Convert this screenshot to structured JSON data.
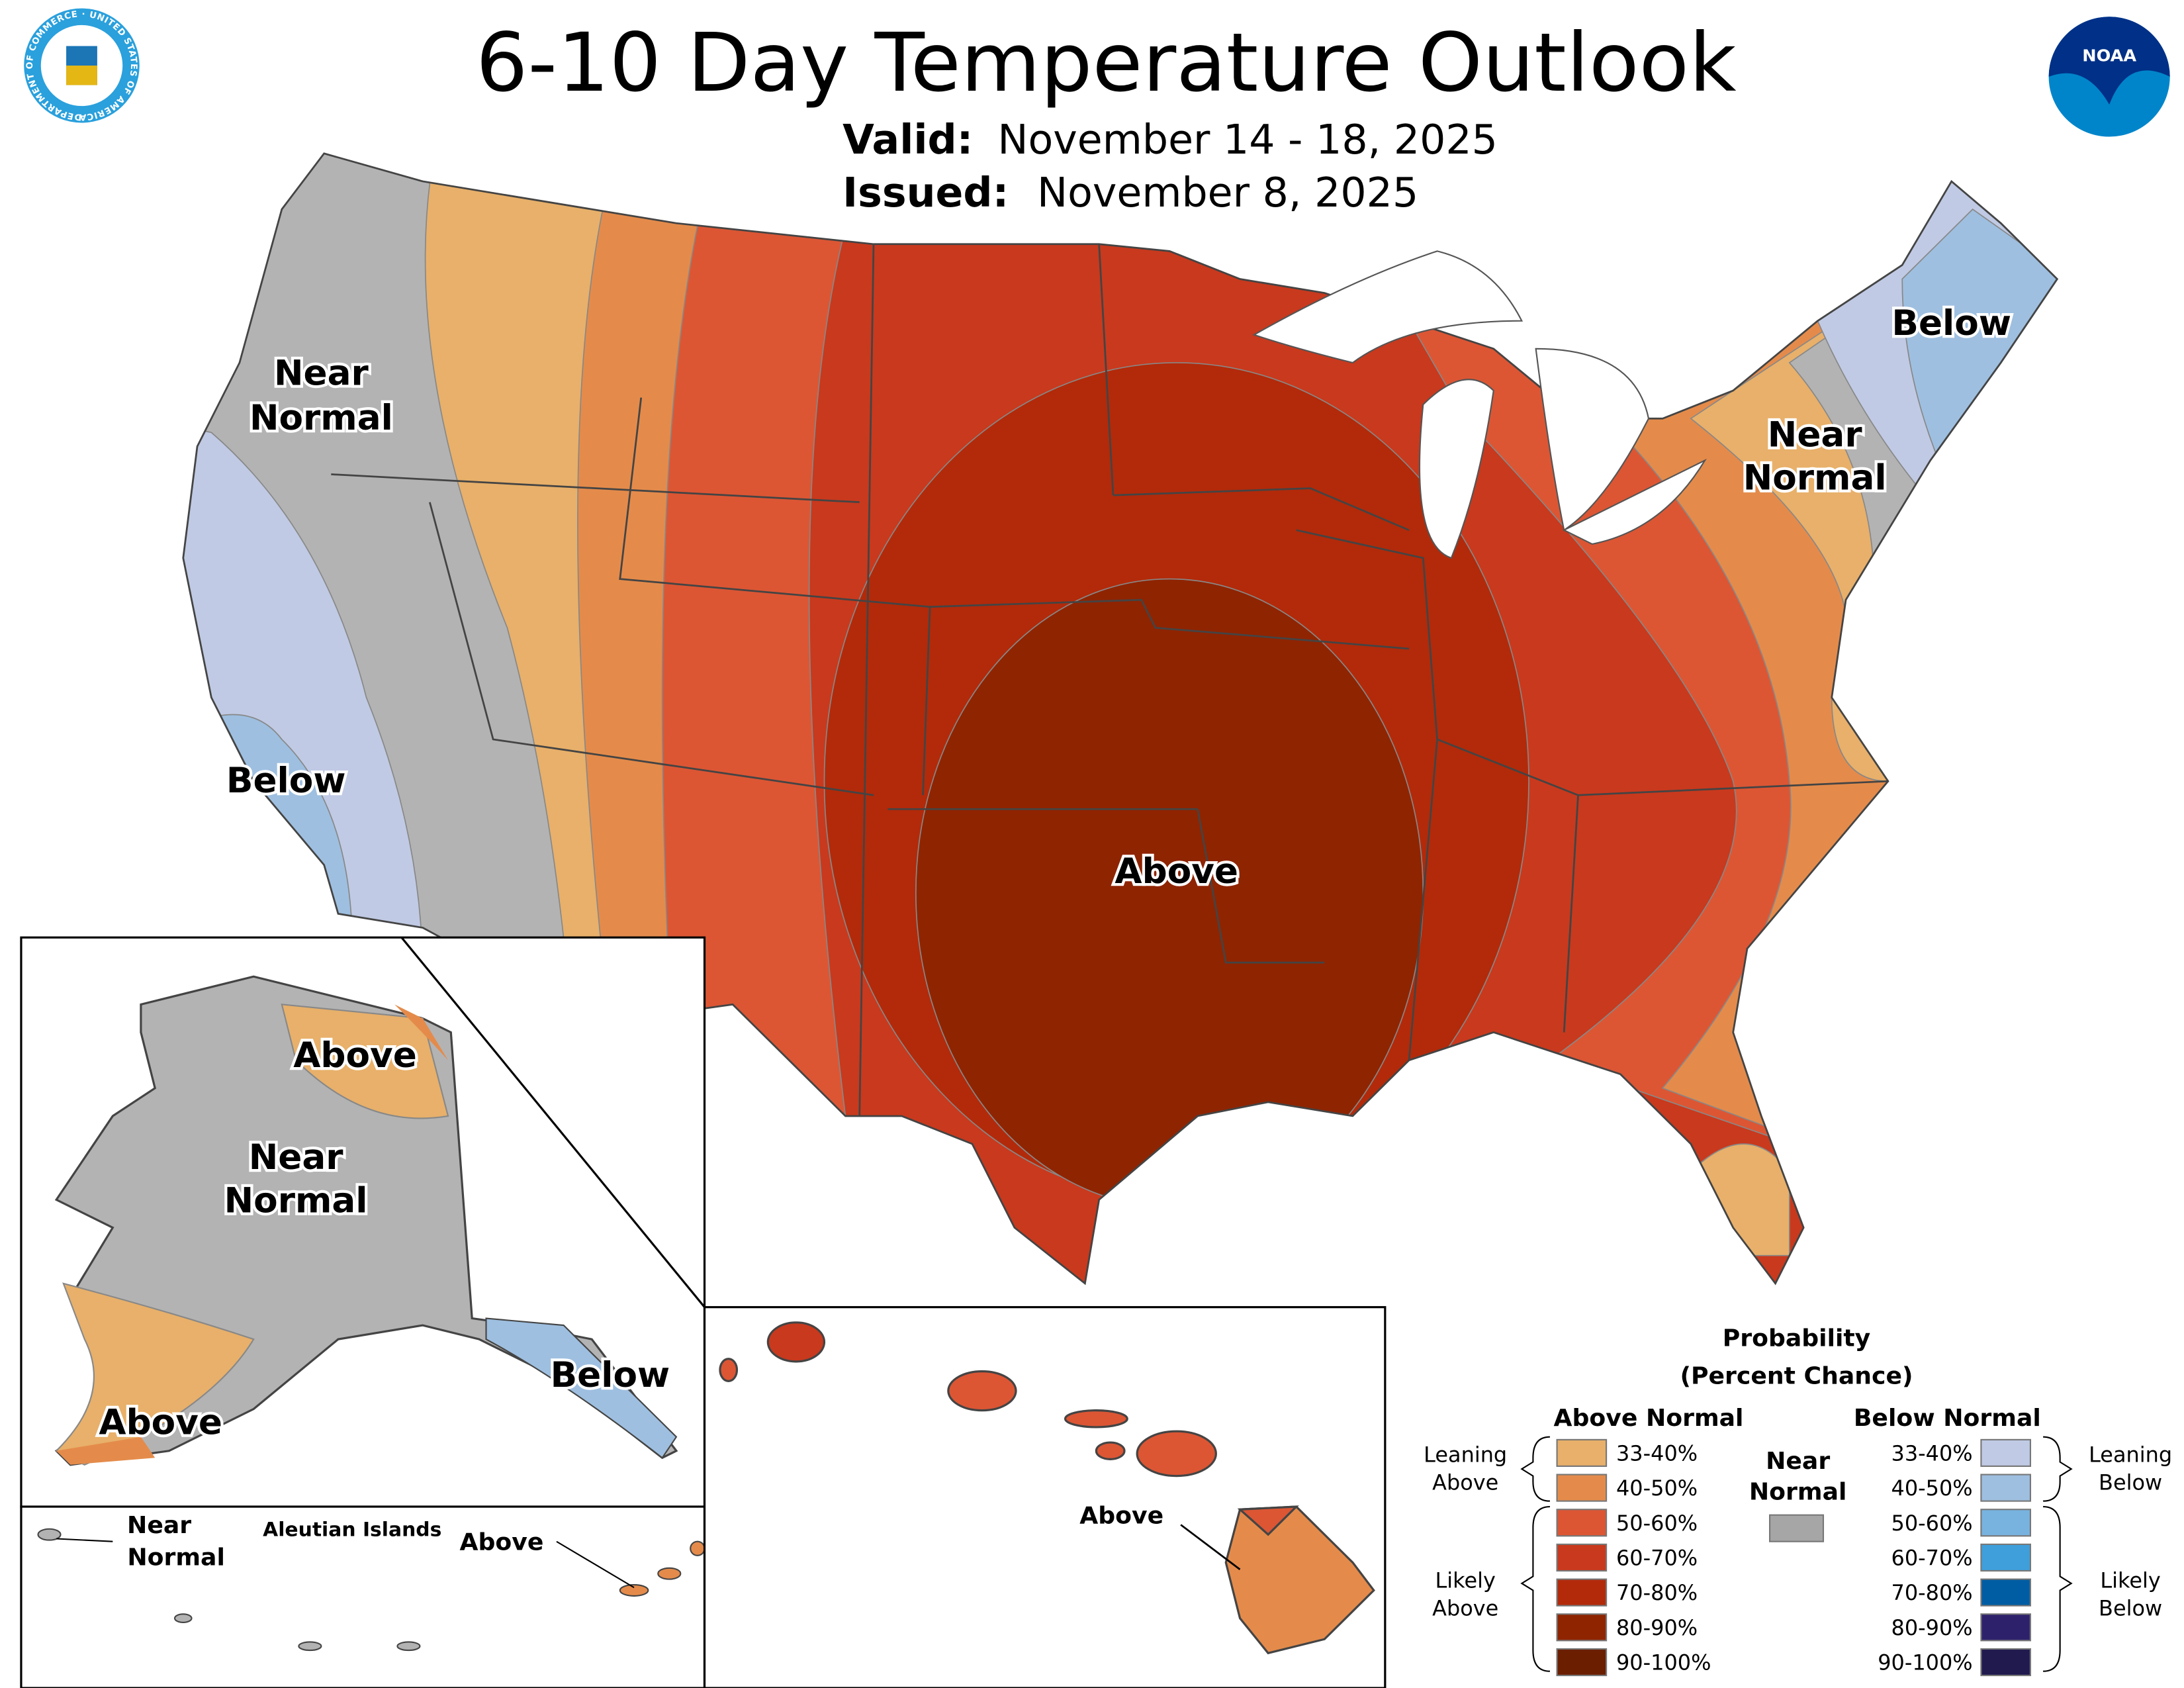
{
  "header": {
    "title": "6-10 Day Temperature Outlook",
    "valid_label": "Valid:",
    "valid_value": "November 14 - 18, 2025",
    "issued_label": "Issued:",
    "issued_value": "November 8, 2025",
    "left_logo": "Department of Commerce seal",
    "left_logo_text": "DEPARTMENT OF COMMERCE · UNITED STATES OF AMERICA",
    "right_logo": "NOAA logo",
    "right_logo_text": "NOAA"
  },
  "map_labels": {
    "conus_west_near_normal_1": "Near",
    "conus_west_near_normal_2": "Normal",
    "conus_west_below": "Below",
    "conus_above": "Above",
    "conus_ne_below": "Below",
    "conus_east_near_normal_1": "Near",
    "conus_east_near_normal_2": "Normal",
    "alaska_north_above": "Above",
    "alaska_near_normal_1": "Near",
    "alaska_near_normal_2": "Normal",
    "alaska_se_below": "Below",
    "alaska_sw_above": "Above",
    "aleutian_near_normal_1": "Near",
    "aleutian_near_normal_2": "Normal",
    "aleutian_title": "Aleutian Islands",
    "aleutian_above": "Above",
    "hawaii_above": "Above"
  },
  "legend": {
    "title_1": "Probability",
    "title_2": "(Percent Chance)",
    "above_header": "Above Normal",
    "below_header": "Below Normal",
    "near_normal_1": "Near",
    "near_normal_2": "Normal",
    "near_normal_color": "#a6a6a6",
    "leaning_above_1": "Leaning",
    "leaning_above_2": "Above",
    "likely_above_1": "Likely",
    "likely_above_2": "Above",
    "leaning_below_1": "Leaning",
    "leaning_below_2": "Below",
    "likely_below_1": "Likely",
    "likely_below_2": "Below",
    "above": [
      {
        "range": "33-40%",
        "color": "#e8b06a"
      },
      {
        "range": "40-50%",
        "color": "#e48b4b"
      },
      {
        "range": "50-60%",
        "color": "#dc5634"
      },
      {
        "range": "60-70%",
        "color": "#c9391d"
      },
      {
        "range": "70-80%",
        "color": "#b22a0a"
      },
      {
        "range": "80-90%",
        "color": "#8f2401"
      },
      {
        "range": "90-100%",
        "color": "#6b1e00"
      }
    ],
    "below": [
      {
        "range": "33-40%",
        "color": "#c0cae4"
      },
      {
        "range": "40-50%",
        "color": "#9ebfe0"
      },
      {
        "range": "50-60%",
        "color": "#78b3e0"
      },
      {
        "range": "60-70%",
        "color": "#3e9fdb"
      },
      {
        "range": "70-80%",
        "color": "#005da3"
      },
      {
        "range": "80-90%",
        "color": "#2e216c"
      },
      {
        "range": "90-100%",
        "color": "#211a4f"
      }
    ]
  }
}
